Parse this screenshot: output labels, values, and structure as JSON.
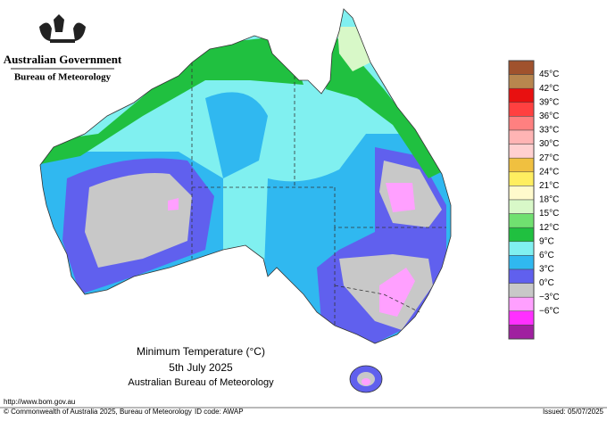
{
  "header": {
    "government": "Australian Government",
    "bureau": "Bureau of Meteorology"
  },
  "legend": {
    "labels": [
      "45°C",
      "42°C",
      "39°C",
      "36°C",
      "33°C",
      "30°C",
      "27°C",
      "24°C",
      "21°C",
      "18°C",
      "15°C",
      "12°C",
      "9°C",
      "6°C",
      "3°C",
      "0°C",
      "−3°C",
      "−6°C"
    ],
    "colors": [
      "#a0522d",
      "#b8864e",
      "#e81010",
      "#ff4040",
      "#ff8080",
      "#ffb4b4",
      "#ffd0d0",
      "#f0c040",
      "#ffee60",
      "#fffacc",
      "#d8f8c8",
      "#70e070",
      "#20c040",
      "#80f0f0",
      "#30b8f0",
      "#6060ee",
      "#c8c8c8",
      "#ffa0ff",
      "#ff30ff",
      "#a020a0"
    ]
  },
  "map": {
    "title": "Minimum Temperature (°C)",
    "date": "5th July 2025",
    "source": "Australian Bureau of Meteorology"
  },
  "footer": {
    "url": "http://www.bom.gov.au",
    "copyright": "© Commonwealth of Australia 2025, Bureau of Meteorology",
    "id": "ID code: AWAP",
    "issued": "Issued: 05/07/2025"
  }
}
